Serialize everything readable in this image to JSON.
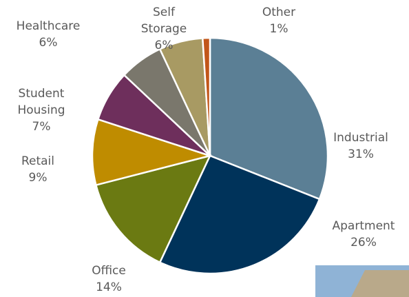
{
  "chart_data": {
    "type": "pie",
    "categories": [
      "Industrial",
      "Apartment",
      "Office",
      "Retail",
      "Student Housing",
      "Healthcare",
      "Self Storage",
      "Other"
    ],
    "values": [
      31,
      26,
      14,
      9,
      7,
      6,
      6,
      1
    ],
    "value_labels": [
      "31%",
      "26%",
      "14%",
      "9%",
      "7%",
      "6%",
      "6%",
      "1%"
    ],
    "colors": [
      "#5b7f95",
      "#00335a",
      "#6b7a12",
      "#bf8c00",
      "#6e2f5c",
      "#7a776c",
      "#a89a63",
      "#c2561a"
    ]
  }
}
